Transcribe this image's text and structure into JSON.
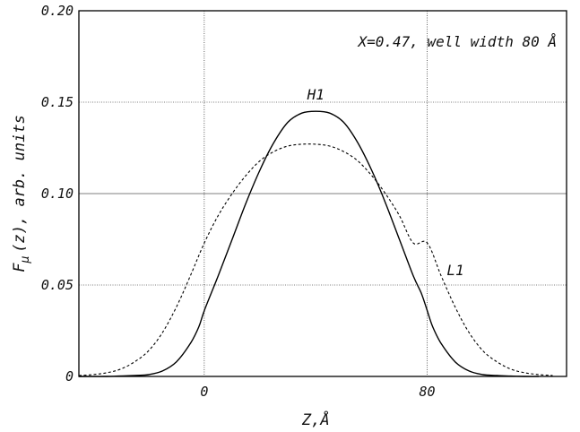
{
  "chart_data": {
    "type": "line",
    "title": "",
    "annotation": "X=0.47, well width 80 Å",
    "xlabel": "Z,Å",
    "ylabel": "F_μ (z), arb. units",
    "ylabel_parts": {
      "main": "F",
      "sub": "μ",
      "rest": "(z), arb. units"
    },
    "xlim": [
      -45,
      130
    ],
    "ylim": [
      0,
      0.2
    ],
    "xticks": [
      0,
      80
    ],
    "xtick_labels": [
      "0",
      "80"
    ],
    "yticks": [
      0,
      0.05,
      0.1,
      0.15,
      0.2
    ],
    "ytick_labels": [
      "0",
      "0.05",
      "0.10",
      "0.15",
      "0.20"
    ],
    "grid": true,
    "legend": "none",
    "series": [
      {
        "name": "H1",
        "style": "solid",
        "x": [
          -45,
          -35,
          -25,
          -20,
          -15,
          -10,
          -5,
          -2,
          0,
          5,
          10,
          15,
          20,
          25,
          30,
          35,
          40,
          45,
          50,
          55,
          60,
          65,
          70,
          75,
          78,
          80,
          82,
          85,
          90,
          95,
          100,
          105,
          110,
          115,
          120
        ],
        "values": [
          0,
          0,
          0.0005,
          0.001,
          0.003,
          0.008,
          0.018,
          0.027,
          0.036,
          0.055,
          0.075,
          0.095,
          0.113,
          0.128,
          0.139,
          0.144,
          0.145,
          0.144,
          0.139,
          0.128,
          0.113,
          0.095,
          0.075,
          0.055,
          0.045,
          0.036,
          0.027,
          0.018,
          0.008,
          0.003,
          0.001,
          0.0005,
          0.0002,
          0,
          0
        ]
      },
      {
        "name": "L1",
        "style": "dashed",
        "x": [
          -45,
          -40,
          -35,
          -30,
          -25,
          -20,
          -15,
          -10,
          -5,
          0,
          5,
          10,
          15,
          20,
          25,
          30,
          35,
          40,
          45,
          50,
          55,
          60,
          65,
          70,
          75,
          80,
          85,
          90,
          95,
          100,
          105,
          110,
          115,
          120,
          125
        ],
        "values": [
          0.0005,
          0.001,
          0.002,
          0.004,
          0.008,
          0.014,
          0.024,
          0.038,
          0.055,
          0.073,
          0.088,
          0.1,
          0.11,
          0.118,
          0.123,
          0.126,
          0.127,
          0.127,
          0.126,
          0.123,
          0.118,
          0.11,
          0.1,
          0.088,
          0.073,
          0.073,
          0.055,
          0.038,
          0.024,
          0.014,
          0.008,
          0.004,
          0.002,
          0.001,
          0.0005
        ]
      }
    ],
    "curve_labels": [
      {
        "text": "H1",
        "x": 40,
        "y": 0.15
      },
      {
        "text": "L1",
        "x": 87,
        "y": 0.054
      }
    ]
  }
}
